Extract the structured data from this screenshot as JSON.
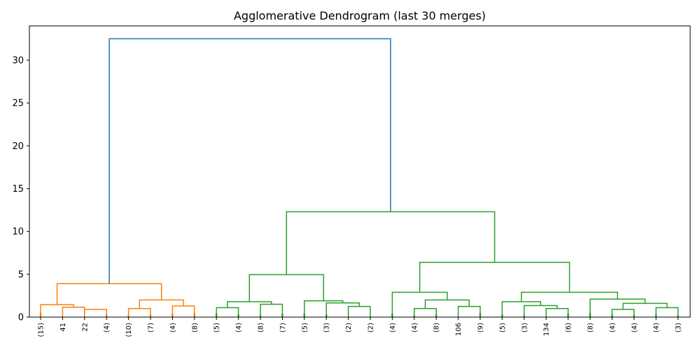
{
  "chart_data": {
    "type": "dendrogram",
    "title": "Agglomerative Dendrogram (last 30 merges)",
    "xlabel": "",
    "ylabel": "",
    "ylim": [
      0,
      34
    ],
    "yticks": [
      0,
      5,
      10,
      15,
      20,
      25,
      30
    ],
    "grid": false,
    "colors": {
      "cluster_a": "#ff7f0e",
      "cluster_b": "#2ca02c",
      "above_threshold": "#1f77b4"
    },
    "leaves": [
      "(15)",
      "41",
      "22",
      "(4)",
      "(10)",
      "(7)",
      "(4)",
      "(8)",
      "(5)",
      "(4)",
      "(8)",
      "(7)",
      "(5)",
      "(3)",
      "(2)",
      "(2)",
      "(4)",
      "(4)",
      "(8)",
      "106",
      "(9)",
      "(5)",
      "(3)",
      "134",
      "(6)",
      "(8)",
      "(4)",
      "(4)",
      "(4)",
      "(3)"
    ],
    "leaf_marker_heights": [
      0.5,
      0,
      0,
      0.3,
      0.2,
      0.3,
      0.4,
      0.5,
      0.4,
      0.3,
      0.2,
      0.4,
      0.4,
      0.3,
      0,
      0,
      0.4,
      0.2,
      0.3,
      0,
      0.5,
      0.3,
      0.2,
      0,
      0.4,
      0.5,
      0.3,
      0.3,
      0.3,
      0.2
    ],
    "merges": [
      {
        "id": "m0",
        "left": "L1",
        "right": "L2",
        "height": 1.15,
        "color": "cluster_a"
      },
      {
        "id": "m1",
        "left": "L2",
        "right": "L3",
        "height": 0.9,
        "color": "cluster_a"
      },
      {
        "id": "m2",
        "left": "L0",
        "right": "m0",
        "height": 1.45,
        "color": "cluster_a"
      },
      {
        "id": "m3",
        "left": "L4",
        "right": "L5",
        "height": 1.0,
        "color": "cluster_a"
      },
      {
        "id": "m4",
        "left": "L6",
        "right": "L7",
        "height": 1.3,
        "color": "cluster_a"
      },
      {
        "id": "m5",
        "left": "m3",
        "right": "m4",
        "height": 2.0,
        "color": "cluster_a"
      },
      {
        "id": "m6",
        "left": "m2",
        "right": "m5",
        "height": 3.9,
        "color": "cluster_a"
      },
      {
        "id": "m7",
        "left": "L8",
        "right": "L9",
        "height": 1.1,
        "color": "cluster_b"
      },
      {
        "id": "m8",
        "left": "L10",
        "right": "L11",
        "height": 1.5,
        "color": "cluster_b"
      },
      {
        "id": "m9",
        "left": "m7",
        "right": "m8",
        "height": 1.8,
        "color": "cluster_b"
      },
      {
        "id": "m10",
        "left": "L14",
        "right": "L15",
        "height": 1.25,
        "color": "cluster_b"
      },
      {
        "id": "m11",
        "left": "L13",
        "right": "m10",
        "height": 1.65,
        "color": "cluster_b"
      },
      {
        "id": "m12",
        "left": "L12",
        "right": "m11",
        "height": 1.9,
        "color": "cluster_b"
      },
      {
        "id": "m13",
        "left": "m9",
        "right": "m12",
        "height": 4.95,
        "color": "cluster_b"
      },
      {
        "id": "m14",
        "left": "L17",
        "right": "L18",
        "height": 1.0,
        "color": "cluster_b"
      },
      {
        "id": "m15",
        "left": "L19",
        "right": "L20",
        "height": 1.25,
        "color": "cluster_b"
      },
      {
        "id": "m16",
        "left": "m14",
        "right": "m15",
        "height": 2.0,
        "color": "cluster_b"
      },
      {
        "id": "m17",
        "left": "L16",
        "right": "m16",
        "height": 2.9,
        "color": "cluster_b"
      },
      {
        "id": "m18",
        "left": "L23",
        "right": "L24",
        "height": 1.0,
        "color": "cluster_b"
      },
      {
        "id": "m19",
        "left": "L22",
        "right": "m18",
        "height": 1.35,
        "color": "cluster_b"
      },
      {
        "id": "m20",
        "left": "L21",
        "right": "m19",
        "height": 1.8,
        "color": "cluster_b"
      },
      {
        "id": "m21",
        "left": "L26",
        "right": "L27",
        "height": 0.9,
        "color": "cluster_b"
      },
      {
        "id": "m22",
        "left": "L28",
        "right": "L29",
        "height": 1.1,
        "color": "cluster_b"
      },
      {
        "id": "m23",
        "left": "m21",
        "right": "m22",
        "height": 1.6,
        "color": "cluster_b"
      },
      {
        "id": "m24",
        "left": "L25",
        "right": "m23",
        "height": 2.1,
        "color": "cluster_b"
      },
      {
        "id": "m25",
        "left": "m20",
        "right": "m24",
        "height": 2.9,
        "color": "cluster_b"
      },
      {
        "id": "m26",
        "left": "m17",
        "right": "m25",
        "height": 6.4,
        "color": "cluster_b"
      },
      {
        "id": "m27",
        "left": "m13",
        "right": "m26",
        "height": 12.3,
        "color": "cluster_b"
      },
      {
        "id": "m28",
        "left": "m6",
        "right": "m27",
        "height": 32.5,
        "color": "above_threshold"
      }
    ]
  }
}
